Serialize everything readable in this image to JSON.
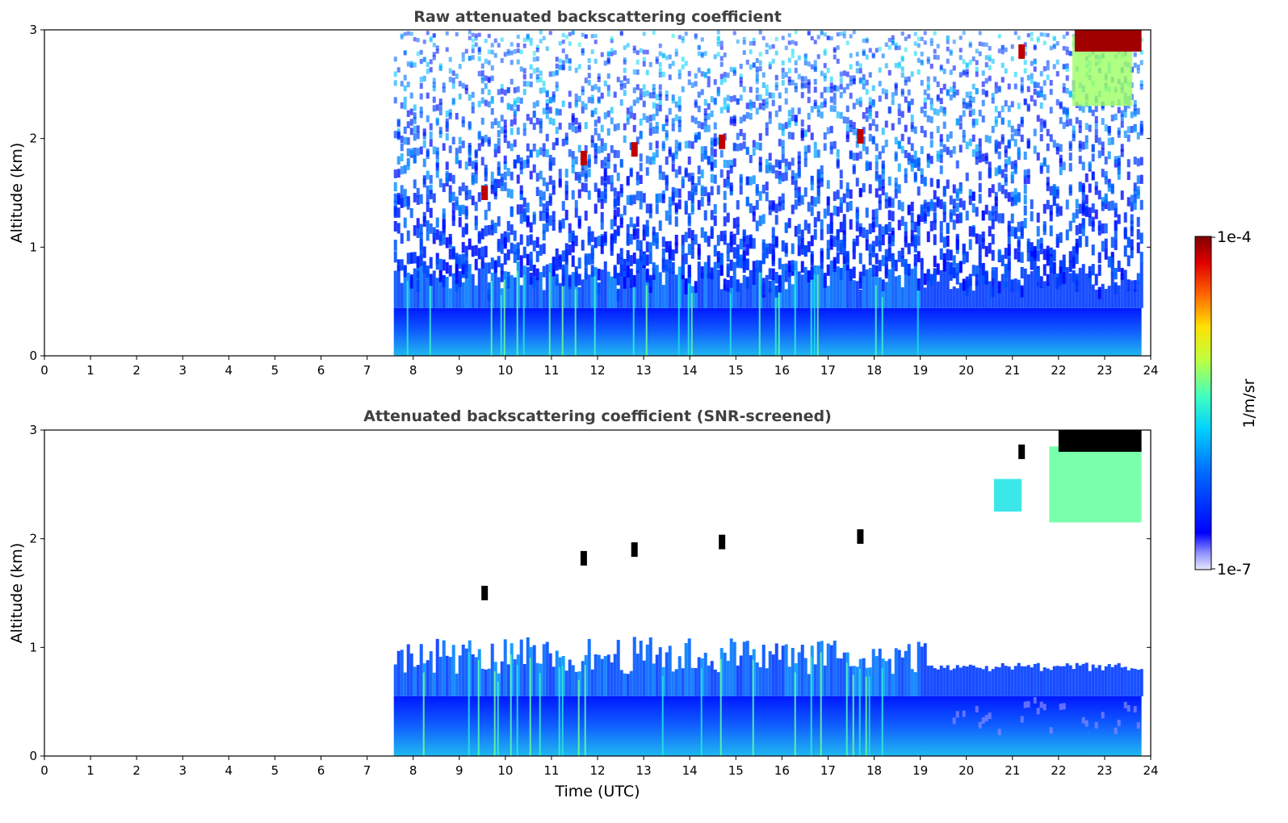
{
  "chart_data": [
    {
      "type": "heatmap",
      "title": "Raw attenuated backscattering coefficient",
      "xlabel": "",
      "ylabel": "Altitude (km)",
      "xlim": [
        0,
        24
      ],
      "ylim": [
        0,
        3
      ],
      "xticks": [
        "0",
        "1",
        "2",
        "3",
        "4",
        "5",
        "6",
        "7",
        "8",
        "9",
        "10",
        "11",
        "12",
        "13",
        "14",
        "15",
        "16",
        "17",
        "18",
        "19",
        "20",
        "21",
        "22",
        "23",
        "24"
      ],
      "yticks": [
        "0",
        "1",
        "2",
        "3"
      ],
      "data_time_range_utc": [
        7.58,
        23.8
      ],
      "features": [
        {
          "name": "boundary_layer",
          "time": [
            7.58,
            23.8
          ],
          "altitude_top_km": 0.8,
          "intensity": "moderate"
        },
        {
          "name": "noise_aloft",
          "time": [
            7.58,
            23.8
          ],
          "altitude_km": [
            0.8,
            3.0
          ],
          "intensity": "low_noisy"
        },
        {
          "name": "cloud_layer",
          "time": [
            22.0,
            23.8
          ],
          "altitude_km": [
            2.8,
            3.0
          ],
          "intensity": "saturated"
        },
        {
          "name": "small_clouds",
          "points": [
            [
              9.55,
              1.5
            ],
            [
              11.7,
              1.82
            ],
            [
              12.8,
              1.9
            ],
            [
              14.7,
              1.97
            ],
            [
              17.7,
              2.02
            ],
            [
              21.2,
              2.8
            ]
          ]
        }
      ]
    },
    {
      "type": "heatmap",
      "title": "Attenuated backscattering coefficient (SNR-screened)",
      "xlabel": "Time (UTC)",
      "ylabel": "Altitude (km)",
      "xlim": [
        0,
        24
      ],
      "ylim": [
        0,
        3
      ],
      "xticks": [
        "0",
        "1",
        "2",
        "3",
        "4",
        "5",
        "6",
        "7",
        "8",
        "9",
        "10",
        "11",
        "12",
        "13",
        "14",
        "15",
        "16",
        "17",
        "18",
        "19",
        "20",
        "21",
        "22",
        "23",
        "24"
      ],
      "yticks": [
        "0",
        "1",
        "2",
        "3"
      ],
      "data_time_range_utc": [
        7.58,
        23.8
      ],
      "features": [
        {
          "name": "boundary_layer",
          "time": [
            7.58,
            23.8
          ],
          "altitude_top_km": 1.0,
          "intensity": "moderate"
        },
        {
          "name": "cloud_layer",
          "time": [
            22.0,
            23.8
          ],
          "altitude_km": [
            2.15,
            3.0
          ],
          "intensity": "high"
        },
        {
          "name": "cloud_patch",
          "time": [
            20.6,
            21.2
          ],
          "altitude_km": [
            2.25,
            2.55
          ],
          "intensity": "medium"
        },
        {
          "name": "small_clouds",
          "points": [
            [
              9.55,
              1.5
            ],
            [
              11.7,
              1.82
            ],
            [
              12.8,
              1.9
            ],
            [
              14.7,
              1.97
            ],
            [
              17.7,
              2.02
            ],
            [
              21.2,
              2.8
            ]
          ]
        }
      ]
    }
  ],
  "colorbar": {
    "max_label": "1e-4",
    "min_label": "1e-7",
    "label": "1/m/sr",
    "colormap": "jet",
    "scale": "log"
  }
}
